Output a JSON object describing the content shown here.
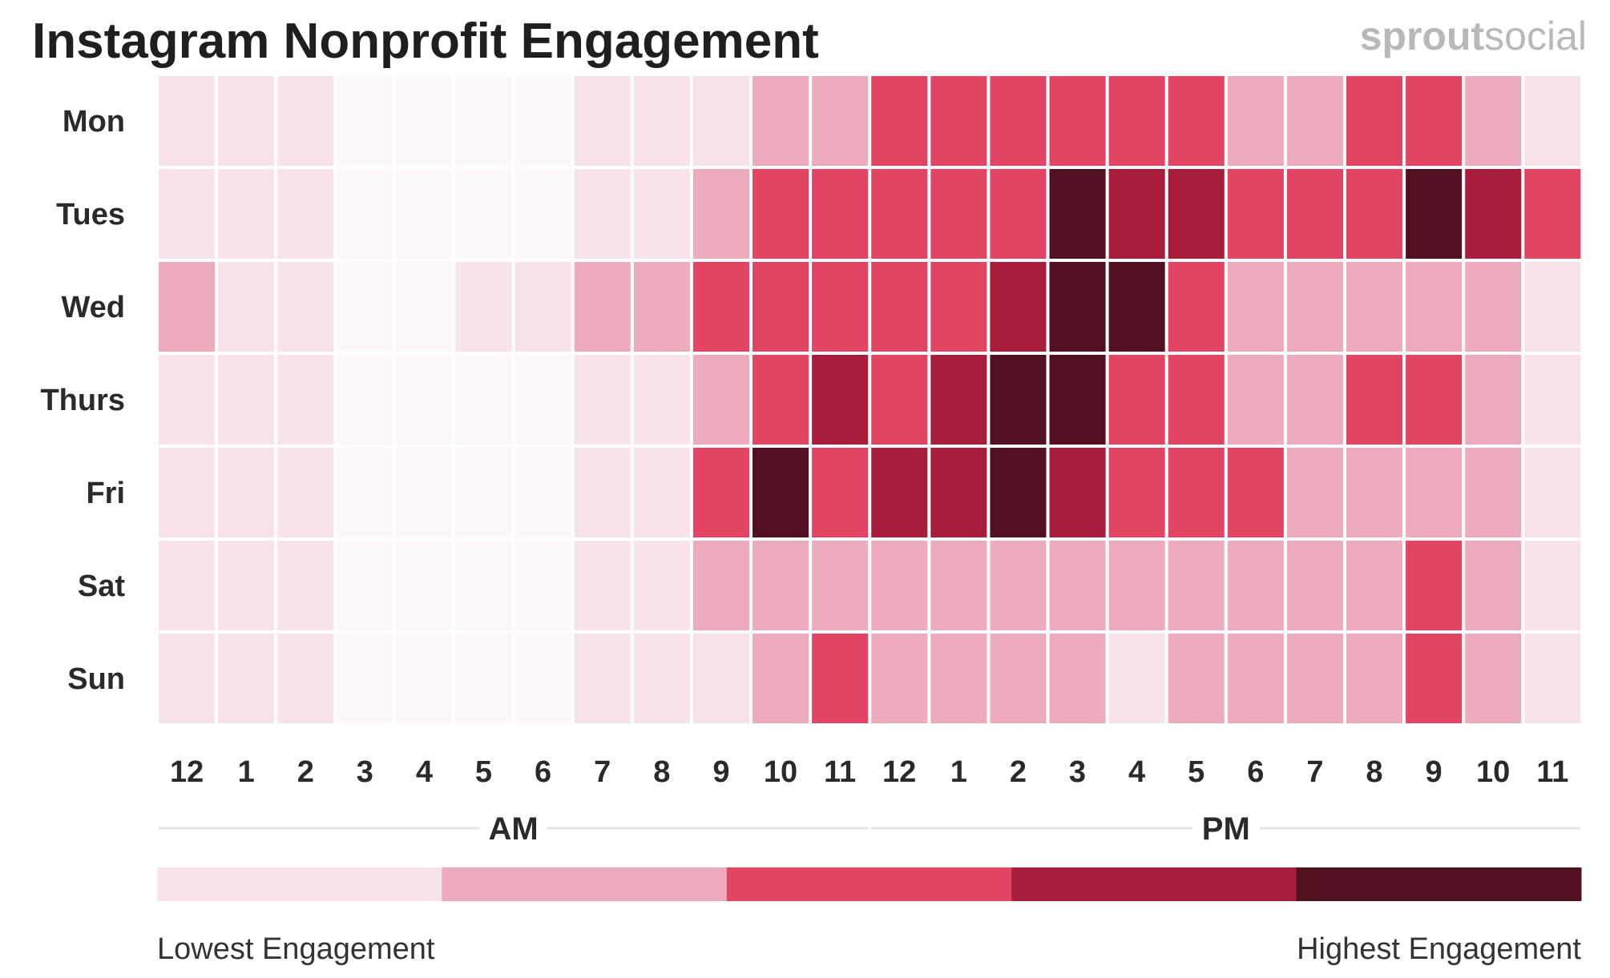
{
  "chart_data": {
    "type": "heatmap",
    "title": "Instagram Nonprofit Engagement",
    "brand": {
      "bold": "sprout",
      "light": "social"
    },
    "rows": [
      "Mon",
      "Tues",
      "Wed",
      "Thurs",
      "Fri",
      "Sat",
      "Sun"
    ],
    "columns": [
      "12",
      "1",
      "2",
      "3",
      "4",
      "5",
      "6",
      "7",
      "8",
      "9",
      "10",
      "11",
      "12",
      "1",
      "2",
      "3",
      "4",
      "5",
      "6",
      "7",
      "8",
      "9",
      "10",
      "11"
    ],
    "periods": [
      {
        "label": "AM",
        "start_col": 0,
        "end_col": 11
      },
      {
        "label": "PM",
        "start_col": 12,
        "end_col": 23
      }
    ],
    "levels": 5,
    "values": [
      [
        1,
        1,
        1,
        0,
        0,
        0,
        0,
        1,
        1,
        1,
        2,
        2,
        3,
        3,
        3,
        3,
        3,
        3,
        2,
        2,
        3,
        3,
        2,
        1
      ],
      [
        1,
        1,
        1,
        0,
        0,
        0,
        0,
        1,
        1,
        2,
        3,
        3,
        3,
        3,
        3,
        5,
        4,
        4,
        3,
        3,
        3,
        5,
        4,
        3
      ],
      [
        2,
        1,
        1,
        0,
        0,
        1,
        1,
        2,
        2,
        3,
        3,
        3,
        3,
        3,
        4,
        5,
        5,
        3,
        2,
        2,
        2,
        2,
        2,
        1
      ],
      [
        1,
        1,
        1,
        0,
        0,
        0,
        0,
        1,
        1,
        2,
        3,
        4,
        3,
        4,
        5,
        5,
        3,
        3,
        2,
        2,
        3,
        3,
        2,
        1
      ],
      [
        1,
        1,
        1,
        0,
        0,
        0,
        0,
        1,
        1,
        3,
        5,
        3,
        4,
        4,
        5,
        4,
        3,
        3,
        3,
        2,
        2,
        2,
        2,
        1
      ],
      [
        1,
        1,
        1,
        0,
        0,
        0,
        0,
        1,
        1,
        2,
        2,
        2,
        2,
        2,
        2,
        2,
        2,
        2,
        2,
        2,
        2,
        3,
        2,
        1
      ],
      [
        1,
        1,
        1,
        0,
        0,
        0,
        0,
        1,
        1,
        1,
        2,
        3,
        2,
        2,
        2,
        2,
        1,
        2,
        2,
        2,
        2,
        3,
        2,
        1
      ]
    ],
    "level_colors": [
      "#fdf7f9",
      "#f7e3e9",
      "#efabbe",
      "#e34464",
      "#a91d3c",
      "#521020"
    ],
    "legend": {
      "colors": [
        "#f7e3e9",
        "#efabbe",
        "#e34464",
        "#a91d3c",
        "#521020"
      ],
      "low_label": "Lowest Engagement",
      "high_label": "Highest Engagement"
    }
  }
}
